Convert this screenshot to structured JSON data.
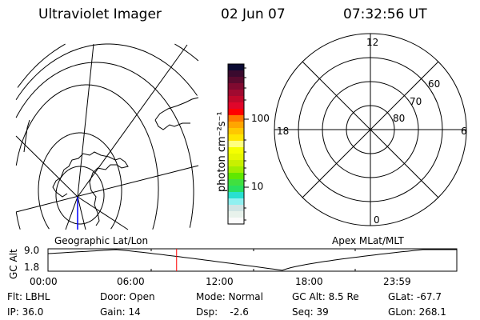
{
  "header": {
    "title": "Ultraviolet Imager",
    "date": "02 Jun 07",
    "time": "07:32:56 UT"
  },
  "colorbar": {
    "label": "photon cm⁻²s⁻¹",
    "ticks": [
      "100",
      "10"
    ],
    "colors": [
      "#0b0b33",
      "#3a0a2e",
      "#5a0a2e",
      "#800a30",
      "#a00a30",
      "#c0082a",
      "#e0062a",
      "#ff0000",
      "#ff7700",
      "#ffa500",
      "#ffc800",
      "#ffe600",
      "#ffff80",
      "#f5ff00",
      "#e6f700",
      "#c8f000",
      "#a0ee00",
      "#60e800",
      "#40e040",
      "#28e060",
      "#28e0d0",
      "#90f0f0",
      "#d0e4e4",
      "#e8f2ec",
      "#fbfbfb"
    ]
  },
  "geo_map": {
    "label": "Geographic Lat/Lon"
  },
  "apex_map": {
    "label": "Apex MLat/MLT",
    "mlt_labels": [
      "12",
      "18",
      "6",
      "0"
    ],
    "mlat_labels": [
      "60",
      "70",
      "80"
    ]
  },
  "alt_plot": {
    "ylabel": "GC Alt",
    "y_ticks": [
      "9.0",
      "1.8"
    ],
    "x_ticks": [
      "00:00",
      "06:00",
      "12:00",
      "18:00",
      "23:59"
    ],
    "current_time_hours": 7.55
  },
  "status": {
    "row1": [
      "Flt: LBHL",
      "Door: Open",
      "Mode: Normal",
      "GC Alt: 8.5 Re",
      "GLat: -67.7"
    ],
    "row2": [
      "IP: 36.0",
      "Gain: 14",
      "Dsp:    -2.6",
      "Seq: 39",
      "GLon: 268.1"
    ]
  }
}
